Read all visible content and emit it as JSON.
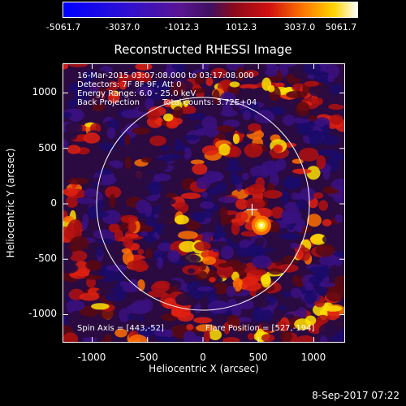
{
  "colorbar": {
    "ticks": [
      "-5061.7",
      "-3037.0",
      "-1012.3",
      "1012.3",
      "3037.0",
      "5061.7"
    ]
  },
  "title": "Reconstructed RHESSI Image",
  "info": {
    "date_range": "16-Mar-2015 03:07:08.000 to 03:17:08.000",
    "detectors": "Detectors: 7F 8F 9F, Att 0",
    "energy": "Energy Range: 6.0 - 25.0 keV",
    "method": "Back Projection",
    "counts": "Total counts: 3.72E+04",
    "spin_axis": "Spin Axis = [443,-52]",
    "flare_position": "Flare Position = [527,-194]"
  },
  "axes": {
    "xlabel": "Heliocentric X (arcsec)",
    "ylabel": "Heliocentric Y (arcsec)",
    "xticks": [
      "-1000",
      "-500",
      "0",
      "500",
      "1000"
    ],
    "yticks": [
      "1000",
      "500",
      "0",
      "-500",
      "-1000"
    ]
  },
  "timestamp": "8-Sep-2017 07:22"
}
